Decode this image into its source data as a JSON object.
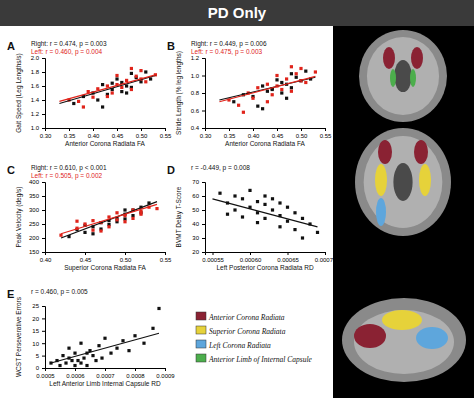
{
  "figure": {
    "title": "PD Only",
    "regions": [
      {
        "label": "Anterior Corona Radiata",
        "color": "#8a2233"
      },
      {
        "label": "Superior Corona Radiata",
        "color": "#e6d23a"
      },
      {
        "label": "Left Corona Radiata",
        "color": "#5ea6dc"
      },
      {
        "label": "Anterior Limb of Internal Capsule",
        "color": "#4cae4c"
      }
    ]
  },
  "chart_data": [
    {
      "type": "scatter",
      "title": "A",
      "x_label": "Anterior Corona Radiata FA",
      "y_label": "Gait Speed (Leg Lengths/s)",
      "annotations": [
        {
          "text": "Right: r = 0.474, p = 0.003",
          "color": "#111111"
        },
        {
          "text": "Left: r = 0.460, p = 0.004",
          "color": "#e0241b"
        }
      ],
      "xlim": [
        0.3,
        0.55
      ],
      "xticks": [
        {
          "value": 0.3,
          "label": "0.30"
        },
        0.35,
        {
          "value": 0.4,
          "label": "0.40"
        },
        0.45,
        {
          "value": 0.5,
          "label": "0.50"
        },
        0.55
      ],
      "ylim": [
        1.0,
        2.0
      ],
      "yticks": [
        {
          "value": 1,
          "label": "1.0"
        },
        1.2,
        1.4,
        1.6,
        1.8,
        {
          "value": 2,
          "label": "2.0"
        }
      ],
      "series": [
        {
          "type": "scatter",
          "color": "#111111",
          "marker": "square",
          "x": [
            0.36,
            0.38,
            0.4,
            0.41,
            0.42,
            0.43,
            0.44,
            0.45,
            0.46,
            0.46,
            0.47,
            0.48,
            0.48,
            0.49,
            0.5,
            0.51,
            0.52,
            0.42,
            0.44,
            0.47
          ],
          "values": [
            1.35,
            1.45,
            1.5,
            1.4,
            1.62,
            1.48,
            1.55,
            1.7,
            1.52,
            1.65,
            1.6,
            1.78,
            1.58,
            1.72,
            1.66,
            1.8,
            1.7,
            1.3,
            1.64,
            1.5
          ]
        },
        {
          "type": "scatter",
          "color": "#e0241b",
          "marker": "square",
          "x": [
            0.35,
            0.37,
            0.39,
            0.4,
            0.41,
            0.43,
            0.44,
            0.45,
            0.45,
            0.46,
            0.47,
            0.48,
            0.49,
            0.5,
            0.5,
            0.51,
            0.53,
            0.38,
            0.43,
            0.48
          ],
          "values": [
            1.4,
            1.38,
            1.52,
            1.44,
            1.56,
            1.6,
            1.5,
            1.62,
            1.75,
            1.58,
            1.68,
            1.55,
            1.74,
            1.7,
            1.82,
            1.66,
            1.76,
            1.3,
            1.45,
            1.85
          ]
        },
        {
          "type": "line",
          "color": "#111111",
          "x": [
            0.33,
            0.53
          ],
          "values": [
            1.35,
            1.75
          ]
        },
        {
          "type": "line",
          "color": "#e0241b",
          "x": [
            0.33,
            0.53
          ],
          "values": [
            1.38,
            1.76
          ]
        }
      ]
    },
    {
      "type": "scatter",
      "title": "B",
      "x_label": "Anterior Corona Radiata FA",
      "y_label": "Stride Length (% leg lengths)",
      "annotations": [
        {
          "text": "Right: r = 0.449, p = 0.006",
          "color": "#111111"
        },
        {
          "text": "Left: r = 0.475, p = 0.003",
          "color": "#e0241b"
        }
      ],
      "xlim": [
        0.3,
        0.55
      ],
      "xticks": [
        {
          "value": 0.3,
          "label": "0.30"
        },
        0.35,
        {
          "value": 0.4,
          "label": "0.40"
        },
        0.45,
        {
          "value": 0.5,
          "label": "0.50"
        },
        0.55
      ],
      "ylim": [
        0.4,
        1.2
      ],
      "yticks": [
        0.4,
        0.6,
        0.8,
        {
          "value": 1,
          "label": "1.0"
        },
        1.2
      ],
      "series": [
        {
          "type": "scatter",
          "color": "#111111",
          "marker": "square",
          "x": [
            0.36,
            0.38,
            0.4,
            0.41,
            0.42,
            0.43,
            0.44,
            0.45,
            0.46,
            0.46,
            0.47,
            0.48,
            0.48,
            0.49,
            0.5,
            0.51,
            0.52,
            0.42,
            0.44,
            0.47
          ],
          "values": [
            0.7,
            0.78,
            0.76,
            0.65,
            0.88,
            0.82,
            0.85,
            0.95,
            0.8,
            0.92,
            0.9,
            1.02,
            0.86,
            0.98,
            0.94,
            1.05,
            0.96,
            0.62,
            0.84,
            0.74
          ]
        },
        {
          "type": "scatter",
          "color": "#e0241b",
          "marker": "square",
          "x": [
            0.35,
            0.37,
            0.39,
            0.4,
            0.41,
            0.43,
            0.44,
            0.45,
            0.45,
            0.46,
            0.47,
            0.48,
            0.49,
            0.5,
            0.5,
            0.51,
            0.53,
            0.38,
            0.43,
            0.48
          ],
          "values": [
            0.72,
            0.66,
            0.8,
            0.74,
            0.86,
            0.9,
            0.78,
            0.88,
            1.0,
            0.84,
            0.96,
            0.82,
            1.02,
            0.94,
            1.08,
            0.92,
            1.04,
            0.58,
            0.7,
            1.1
          ]
        },
        {
          "type": "line",
          "color": "#111111",
          "x": [
            0.33,
            0.53
          ],
          "values": [
            0.72,
            0.98
          ]
        },
        {
          "type": "line",
          "color": "#e0241b",
          "x": [
            0.33,
            0.53
          ],
          "values": [
            0.7,
            0.99
          ]
        }
      ]
    },
    {
      "type": "scatter",
      "title": "C",
      "x_label": "Superior Corona Radiata FA",
      "y_label": "Peak Velocity (deg/s)",
      "annotations": [
        {
          "text": "Right: r = 0.610, p < 0.001",
          "color": "#111111"
        },
        {
          "text": "Left: r = 0.505, p = 0.002",
          "color": "#e0241b"
        }
      ],
      "xlim": [
        0.4,
        0.55
      ],
      "xticks": [
        {
          "value": 0.4,
          "label": "0.40"
        },
        0.45,
        {
          "value": 0.5,
          "label": "0.50"
        },
        0.55
      ],
      "ylim": [
        150,
        400
      ],
      "yticks": [
        150,
        200,
        250,
        300,
        350,
        400
      ],
      "series": [
        {
          "type": "scatter",
          "color": "#111111",
          "marker": "square",
          "x": [
            0.43,
            0.44,
            0.45,
            0.45,
            0.46,
            0.47,
            0.47,
            0.48,
            0.48,
            0.49,
            0.49,
            0.5,
            0.5,
            0.51,
            0.51,
            0.52,
            0.52,
            0.53,
            0.46,
            0.5
          ],
          "values": [
            205,
            230,
            220,
            245,
            240,
            255,
            232,
            262,
            248,
            270,
            258,
            285,
            268,
            300,
            280,
            310,
            290,
            325,
            215,
            300
          ]
        },
        {
          "type": "scatter",
          "color": "#e0241b",
          "marker": "square",
          "x": [
            0.42,
            0.44,
            0.45,
            0.46,
            0.46,
            0.47,
            0.48,
            0.48,
            0.49,
            0.49,
            0.5,
            0.5,
            0.51,
            0.51,
            0.52,
            0.52,
            0.53,
            0.54,
            0.44,
            0.47
          ],
          "values": [
            210,
            235,
            250,
            228,
            262,
            255,
            240,
            275,
            265,
            290,
            258,
            280,
            300,
            270,
            295,
            285,
            310,
            305,
            260,
            225
          ]
        },
        {
          "type": "line",
          "color": "#111111",
          "x": [
            0.42,
            0.54
          ],
          "values": [
            200,
            330
          ]
        },
        {
          "type": "line",
          "color": "#e0241b",
          "x": [
            0.42,
            0.54
          ],
          "values": [
            215,
            320
          ]
        }
      ]
    },
    {
      "type": "scatter",
      "title": "D",
      "x_label": "Left Posterior Corona Radiata RD",
      "y_label": "BVMT Delay T-Score",
      "annotations": [
        {
          "text": "r = -0.449, p = 0.008",
          "color": "#111111"
        }
      ],
      "xlim": [
        0.00054,
        0.0007
      ],
      "xticks": [
        0.00055,
        {
          "value": 0.0006,
          "label": "0.00060"
        },
        0.00065,
        {
          "value": 0.0007,
          "label": "0.00070"
        }
      ],
      "ylim": [
        20,
        70
      ],
      "yticks": [
        20,
        30,
        40,
        50,
        60,
        70
      ],
      "series": [
        {
          "type": "scatter",
          "color": "#111111",
          "marker": "square",
          "x": [
            0.00056,
            0.00057,
            0.00058,
            0.00058,
            0.00059,
            0.0006,
            0.0006,
            0.00061,
            0.00061,
            0.00062,
            0.00062,
            0.00063,
            0.00063,
            0.00064,
            0.00064,
            0.00065,
            0.00065,
            0.00066,
            0.00066,
            0.00067,
            0.00068,
            0.00069,
            0.00059,
            0.00062,
            0.00057,
            0.00064,
            0.00067,
            0.00061
          ],
          "values": [
            62,
            55,
            60,
            50,
            58,
            52,
            64,
            48,
            56,
            54,
            44,
            58,
            50,
            46,
            38,
            52,
            42,
            48,
            36,
            44,
            40,
            34,
            45,
            60,
            47,
            55,
            30,
            41
          ]
        },
        {
          "type": "line",
          "color": "#111111",
          "x": [
            0.00055,
            0.00069
          ],
          "values": [
            58,
            38
          ]
        }
      ]
    },
    {
      "type": "scatter",
      "title": "E",
      "x_label": "Left Anterior Limb Internal Capsule RD",
      "y_label": "WCST Perseverative Errors",
      "annotations": [
        {
          "text": "r = 0.460, p = 0.005",
          "color": "#111111"
        }
      ],
      "xlim": [
        0.0005,
        0.0009
      ],
      "xticks": [
        0.0005,
        0.0006,
        0.0007,
        0.0008,
        0.0009
      ],
      "ylim": [
        0,
        25
      ],
      "yticks": [
        0,
        5,
        10,
        15,
        20,
        25
      ],
      "series": [
        {
          "type": "scatter",
          "color": "#111111",
          "marker": "square",
          "x": [
            0.00052,
            0.00054,
            0.00055,
            0.00056,
            0.00057,
            0.00058,
            0.00058,
            0.00059,
            0.0006,
            0.0006,
            0.00061,
            0.00062,
            0.00062,
            0.00063,
            0.00064,
            0.00064,
            0.00065,
            0.00066,
            0.00067,
            0.00068,
            0.00069,
            0.0007,
            0.00072,
            0.00074,
            0.00076,
            0.00078,
            0.0008,
            0.00083,
            0.00086,
            0.00088
          ],
          "values": [
            2,
            3,
            1,
            5,
            2,
            4,
            8,
            3,
            1,
            6,
            3,
            2,
            10,
            4,
            6,
            1,
            7,
            5,
            3,
            9,
            4,
            12,
            6,
            8,
            11,
            7,
            13,
            10,
            16,
            24
          ]
        },
        {
          "type": "line",
          "color": "#111111",
          "x": [
            0.00052,
            0.00088
          ],
          "values": [
            2,
            14
          ]
        }
      ]
    }
  ]
}
